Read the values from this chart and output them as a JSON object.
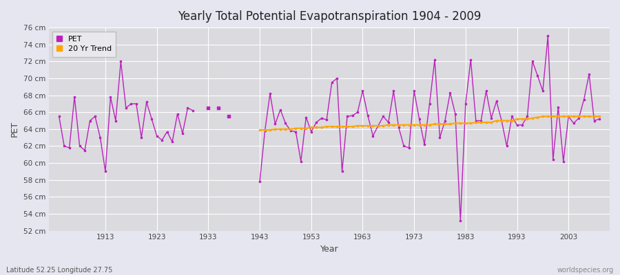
{
  "title": "Yearly Total Potential Evapotranspiration 1904 - 2009",
  "xlabel": "Year",
  "ylabel": "PET",
  "subtitle_left": "Latitude 52.25 Longitude 27.75",
  "subtitle_right": "worldspecies.org",
  "pet_color": "#BB22BB",
  "trend_color": "#FFA500",
  "fig_bg_color": "#E6E6F0",
  "plot_bg_color": "#DADADF",
  "ylim": [
    52,
    76
  ],
  "ytick_step": 2,
  "start_year": 1904,
  "pet_data": [
    [
      1904,
      65.5
    ],
    [
      1905,
      62.0
    ],
    [
      1906,
      61.8
    ],
    [
      1907,
      67.8
    ],
    [
      1908,
      62.0
    ],
    [
      1909,
      61.5
    ],
    [
      1910,
      65.0
    ],
    [
      1911,
      65.5
    ],
    [
      1912,
      63.0
    ],
    [
      1913,
      59.0
    ],
    [
      1914,
      67.8
    ],
    [
      1915,
      65.0
    ],
    [
      1916,
      72.0
    ],
    [
      1917,
      66.5
    ],
    [
      1918,
      67.0
    ],
    [
      1919,
      67.0
    ],
    [
      1920,
      63.0
    ],
    [
      1921,
      67.2
    ],
    [
      1922,
      65.2
    ],
    [
      1923,
      63.2
    ],
    [
      1924,
      62.7
    ],
    [
      1925,
      63.7
    ],
    [
      1926,
      62.5
    ],
    [
      1927,
      65.8
    ],
    [
      1928,
      63.5
    ],
    [
      1929,
      66.5
    ],
    [
      1930,
      66.2
    ],
    [
      1931,
      null
    ],
    [
      1932,
      null
    ],
    [
      1933,
      66.5
    ],
    [
      1934,
      null
    ],
    [
      1935,
      66.5
    ],
    [
      1936,
      null
    ],
    [
      1937,
      65.5
    ],
    [
      1938,
      null
    ],
    [
      1939,
      null
    ],
    [
      1940,
      null
    ],
    [
      1941,
      null
    ],
    [
      1942,
      null
    ],
    [
      1943,
      57.8
    ],
    [
      1944,
      63.8
    ],
    [
      1945,
      68.2
    ],
    [
      1946,
      64.6
    ],
    [
      1947,
      66.3
    ],
    [
      1948,
      64.7
    ],
    [
      1949,
      63.8
    ],
    [
      1950,
      63.7
    ],
    [
      1951,
      60.2
    ],
    [
      1952,
      65.4
    ],
    [
      1953,
      63.7
    ],
    [
      1954,
      64.8
    ],
    [
      1955,
      65.3
    ],
    [
      1956,
      65.1
    ],
    [
      1957,
      69.5
    ],
    [
      1958,
      70.0
    ],
    [
      1959,
      59.0
    ],
    [
      1960,
      65.5
    ],
    [
      1961,
      65.6
    ],
    [
      1962,
      66.0
    ],
    [
      1963,
      68.5
    ],
    [
      1964,
      65.6
    ],
    [
      1965,
      63.2
    ],
    [
      1966,
      64.4
    ],
    [
      1967,
      65.5
    ],
    [
      1968,
      64.8
    ],
    [
      1969,
      68.5
    ],
    [
      1970,
      64.2
    ],
    [
      1971,
      62.0
    ],
    [
      1972,
      61.8
    ],
    [
      1973,
      68.5
    ],
    [
      1974,
      65.2
    ],
    [
      1975,
      62.2
    ],
    [
      1976,
      67.0
    ],
    [
      1977,
      72.2
    ],
    [
      1978,
      63.0
    ],
    [
      1979,
      65.0
    ],
    [
      1980,
      68.3
    ],
    [
      1981,
      65.8
    ],
    [
      1982,
      53.2
    ],
    [
      1983,
      67.0
    ],
    [
      1984,
      72.2
    ],
    [
      1985,
      65.0
    ],
    [
      1986,
      65.0
    ],
    [
      1987,
      68.5
    ],
    [
      1988,
      65.3
    ],
    [
      1989,
      67.3
    ],
    [
      1990,
      65.0
    ],
    [
      1991,
      62.0
    ],
    [
      1992,
      65.5
    ],
    [
      1993,
      64.5
    ],
    [
      1994,
      64.5
    ],
    [
      1995,
      65.5
    ],
    [
      1996,
      72.0
    ],
    [
      1997,
      70.3
    ],
    [
      1998,
      68.5
    ],
    [
      1999,
      75.0
    ],
    [
      2000,
      60.4
    ],
    [
      2001,
      66.6
    ],
    [
      2002,
      60.2
    ],
    [
      2003,
      65.5
    ],
    [
      2004,
      64.7
    ],
    [
      2005,
      65.3
    ],
    [
      2006,
      67.5
    ],
    [
      2007,
      70.5
    ],
    [
      2008,
      65.0
    ],
    [
      2009,
      65.2
    ]
  ],
  "trend_data": [
    [
      1943,
      63.9
    ],
    [
      1944,
      63.9
    ],
    [
      1945,
      63.9
    ],
    [
      1946,
      64.0
    ],
    [
      1947,
      64.0
    ],
    [
      1948,
      64.0
    ],
    [
      1949,
      64.0
    ],
    [
      1950,
      64.1
    ],
    [
      1951,
      64.1
    ],
    [
      1952,
      64.1
    ],
    [
      1953,
      64.2
    ],
    [
      1954,
      64.2
    ],
    [
      1955,
      64.2
    ],
    [
      1956,
      64.3
    ],
    [
      1957,
      64.3
    ],
    [
      1958,
      64.3
    ],
    [
      1959,
      64.3
    ],
    [
      1960,
      64.3
    ],
    [
      1961,
      64.3
    ],
    [
      1962,
      64.4
    ],
    [
      1963,
      64.4
    ],
    [
      1964,
      64.4
    ],
    [
      1965,
      64.4
    ],
    [
      1966,
      64.4
    ],
    [
      1967,
      64.4
    ],
    [
      1968,
      64.5
    ],
    [
      1969,
      64.5
    ],
    [
      1970,
      64.5
    ],
    [
      1971,
      64.5
    ],
    [
      1972,
      64.5
    ],
    [
      1973,
      64.5
    ],
    [
      1974,
      64.5
    ],
    [
      1975,
      64.5
    ],
    [
      1976,
      64.5
    ],
    [
      1977,
      64.6
    ],
    [
      1978,
      64.6
    ],
    [
      1979,
      64.6
    ],
    [
      1980,
      64.6
    ],
    [
      1981,
      64.7
    ],
    [
      1982,
      64.7
    ],
    [
      1983,
      64.7
    ],
    [
      1984,
      64.7
    ],
    [
      1985,
      64.8
    ],
    [
      1986,
      64.8
    ],
    [
      1987,
      64.8
    ],
    [
      1988,
      64.8
    ],
    [
      1989,
      65.0
    ],
    [
      1990,
      65.0
    ],
    [
      1991,
      65.0
    ],
    [
      1992,
      65.0
    ],
    [
      1993,
      65.2
    ],
    [
      1994,
      65.2
    ],
    [
      1995,
      65.2
    ],
    [
      1996,
      65.3
    ],
    [
      1997,
      65.4
    ],
    [
      1998,
      65.5
    ],
    [
      1999,
      65.5
    ],
    [
      2000,
      65.5
    ],
    [
      2001,
      65.5
    ],
    [
      2002,
      65.5
    ],
    [
      2003,
      65.5
    ],
    [
      2004,
      65.5
    ],
    [
      2005,
      65.5
    ],
    [
      2006,
      65.5
    ],
    [
      2007,
      65.5
    ],
    [
      2008,
      65.5
    ],
    [
      2009,
      65.5
    ]
  ],
  "xtick_years": [
    1913,
    1923,
    1933,
    1943,
    1953,
    1963,
    1973,
    1983,
    1993,
    2003
  ],
  "legend_pet_label": "PET",
  "legend_trend_label": "20 Yr Trend"
}
